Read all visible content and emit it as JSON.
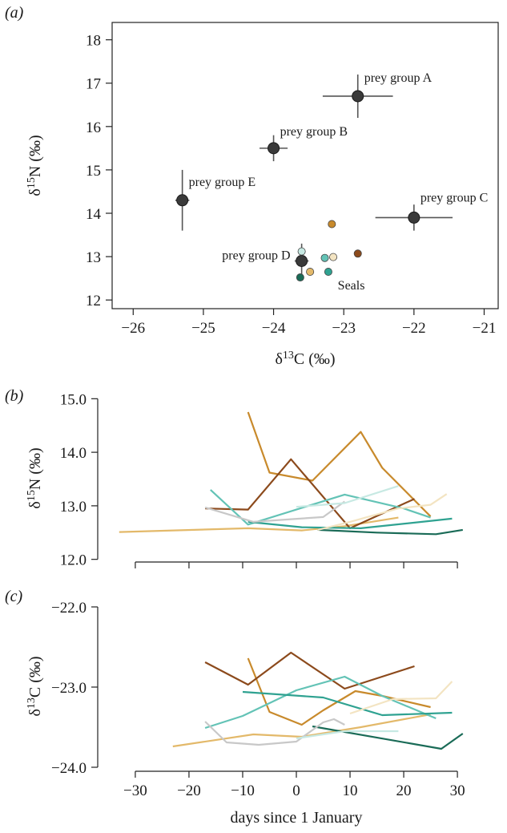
{
  "chart_data": [
    {
      "panel": "(a)",
      "type": "scatter",
      "xlabel": "δ13C (‰)",
      "ylabel": "δ15N (‰)",
      "xlim": [
        -26.3,
        -20.8
      ],
      "ylim": [
        11.8,
        18.4
      ],
      "xticks": [
        -26,
        -25,
        -24,
        -23,
        -22,
        -21
      ],
      "yticks": [
        12,
        13,
        14,
        15,
        16,
        17,
        18
      ],
      "xtick_labels": [
        "−26",
        "−25",
        "−24",
        "−23",
        "−22",
        "−21"
      ],
      "ytick_labels": [
        "12",
        "13",
        "14",
        "15",
        "16",
        "17",
        "18"
      ],
      "prey_groups": [
        {
          "label": "prey group A",
          "x": -22.8,
          "y": 16.7,
          "xerr": 0.5,
          "yerr": 0.5
        },
        {
          "label": "prey group B",
          "x": -24.0,
          "y": 15.5,
          "xerr": 0.2,
          "yerr": 0.3
        },
        {
          "label": "prey group C",
          "x": -22.0,
          "y": 13.9,
          "xerr": 0.55,
          "yerr": 0.3
        },
        {
          "label": "prey group D",
          "x": -23.6,
          "y": 12.9,
          "xerr": 0.1,
          "yerr": 0.4
        },
        {
          "label": "prey group E",
          "x": -25.3,
          "y": 14.3,
          "xerr": 0.1,
          "yerr": 0.7
        }
      ],
      "seals_label": "Seals",
      "seals": [
        {
          "x": -23.6,
          "y": 13.12,
          "color": "#c7e9e3"
        },
        {
          "x": -23.62,
          "y": 12.52,
          "color": "#1a6b57"
        },
        {
          "x": -23.48,
          "y": 12.65,
          "color": "#e3b96a"
        },
        {
          "x": -23.27,
          "y": 12.97,
          "color": "#63c3b6"
        },
        {
          "x": -23.15,
          "y": 12.99,
          "color": "#f3e4c2"
        },
        {
          "x": -23.22,
          "y": 12.65,
          "color": "#2fa291"
        },
        {
          "x": -23.17,
          "y": 13.75,
          "color": "#c88a2c"
        },
        {
          "x": -22.8,
          "y": 13.07,
          "color": "#8c4a1c"
        }
      ]
    },
    {
      "panel": "(b)",
      "type": "line",
      "ylabel": "δ15N (‰)",
      "xlim": [
        -37,
        37
      ],
      "ylim": [
        11.95,
        15.08
      ],
      "xticks": [
        -30,
        -20,
        -10,
        0,
        10,
        20,
        30
      ],
      "yticks": [
        12.0,
        13.0,
        14.0,
        15.0
      ],
      "ytick_labels": [
        "12.0",
        "13.0",
        "14.0",
        "15.0"
      ],
      "series": [
        {
          "color": "#e3b96a",
          "x": [
            -33,
            -9,
            1,
            9,
            19
          ],
          "y": [
            12.51,
            12.58,
            12.54,
            12.62,
            12.78
          ]
        },
        {
          "color": "#c88a2c",
          "x": [
            -9,
            -5,
            3,
            12,
            16,
            25
          ],
          "y": [
            14.75,
            13.62,
            13.47,
            14.38,
            13.71,
            12.8
          ]
        },
        {
          "color": "#8c4a1c",
          "x": [
            -17,
            -9,
            -1,
            10,
            22
          ],
          "y": [
            12.95,
            12.93,
            13.87,
            12.58,
            13.13
          ]
        },
        {
          "color": "#63c3b6",
          "x": [
            -16,
            -9,
            0,
            9,
            20,
            25
          ],
          "y": [
            13.3,
            12.65,
            12.93,
            13.21,
            12.95,
            12.78
          ]
        },
        {
          "color": "#2fa291",
          "x": [
            -9,
            1,
            12,
            29
          ],
          "y": [
            12.7,
            12.6,
            12.58,
            12.76
          ]
        },
        {
          "color": "#1a6b57",
          "x": [
            4,
            15,
            26,
            31
          ],
          "y": [
            12.55,
            12.5,
            12.47,
            12.55
          ]
        },
        {
          "color": "#c8c8c8",
          "x": [
            -17,
            -8,
            -1,
            5,
            9
          ],
          "y": [
            12.97,
            12.7,
            12.75,
            12.79,
            13.08
          ]
        },
        {
          "color": "#c7e9e3",
          "x": [
            0,
            9,
            19
          ],
          "y": [
            12.98,
            13.05,
            13.37
          ]
        },
        {
          "color": "#f3e4c2",
          "x": [
            4,
            10,
            19,
            25,
            28
          ],
          "y": [
            12.55,
            12.7,
            12.95,
            13.02,
            13.22
          ]
        }
      ]
    },
    {
      "panel": "(c)",
      "type": "line",
      "xlabel": "days since 1 January",
      "ylabel": "δ13C (‰)",
      "xlim": [
        -37,
        37
      ],
      "ylim": [
        -24.05,
        -21.93
      ],
      "xticks": [
        -30,
        -20,
        -10,
        0,
        10,
        20,
        30
      ],
      "yticks": [
        -24.0,
        -23.0,
        -22.0
      ],
      "xtick_labels": [
        "−30",
        "−20",
        "−10",
        "0",
        "10",
        "20",
        "30"
      ],
      "ytick_labels": [
        "−24.0",
        "−23.0",
        "−22.0"
      ],
      "series": [
        {
          "color": "#e3b96a",
          "x": [
            -23,
            -8,
            1,
            12,
            25
          ],
          "y": [
            -23.74,
            -23.59,
            -23.62,
            -23.5,
            -23.34
          ]
        },
        {
          "color": "#c88a2c",
          "x": [
            -9,
            -5,
            1,
            5,
            11,
            16,
            25
          ],
          "y": [
            -22.64,
            -23.31,
            -23.47,
            -23.29,
            -23.05,
            -23.11,
            -23.25
          ]
        },
        {
          "color": "#8c4a1c",
          "x": [
            -17,
            -9,
            -1,
            9,
            22
          ],
          "y": [
            -22.69,
            -22.97,
            -22.57,
            -23.02,
            -22.74
          ]
        },
        {
          "color": "#63c3b6",
          "x": [
            -17,
            -10,
            0,
            9,
            16,
            26
          ],
          "y": [
            -23.51,
            -23.36,
            -23.04,
            -22.87,
            -23.11,
            -23.39
          ]
        },
        {
          "color": "#2fa291",
          "x": [
            -10,
            5,
            16,
            29
          ],
          "y": [
            -23.06,
            -23.13,
            -23.35,
            -23.32
          ]
        },
        {
          "color": "#1a6b57",
          "x": [
            3,
            27,
            31
          ],
          "y": [
            -23.49,
            -23.77,
            -23.58
          ]
        },
        {
          "color": "#c8c8c8",
          "x": [
            -17,
            -13,
            -7,
            0,
            5,
            7,
            9
          ],
          "y": [
            -23.43,
            -23.69,
            -23.72,
            -23.68,
            -23.44,
            -23.4,
            -23.47
          ]
        },
        {
          "color": "#c7e9e3",
          "x": [
            0,
            9,
            19
          ],
          "y": [
            -23.64,
            -23.55,
            -23.55
          ]
        },
        {
          "color": "#f3e4c2",
          "x": [
            10,
            18,
            26,
            29
          ],
          "y": [
            -23.33,
            -23.15,
            -23.14,
            -22.93
          ]
        }
      ]
    }
  ]
}
